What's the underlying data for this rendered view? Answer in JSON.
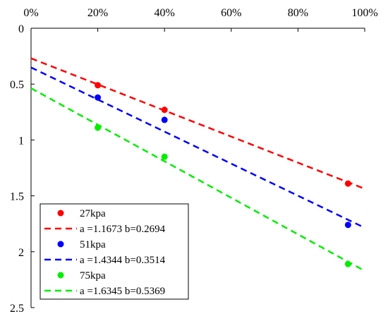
{
  "chart_data": {
    "type": "scatter",
    "title": "",
    "xlabel": "",
    "ylabel": "",
    "x_axis_position": "top",
    "y_axis_reversed": true,
    "xlim": [
      0,
      100
    ],
    "ylim": [
      0,
      2.5
    ],
    "x_ticks": [
      0,
      20,
      40,
      60,
      80,
      100
    ],
    "x_tick_labels": [
      "0%",
      "20%",
      "40%",
      "60%",
      "80%",
      "100%"
    ],
    "y_ticks": [
      0,
      0.5,
      1,
      1.5,
      2,
      2.5
    ],
    "y_tick_labels": [
      "0",
      "0.5",
      "1",
      "1.5",
      "2",
      "2.5"
    ],
    "grid": false,
    "legend_position": "bottom-left",
    "series": [
      {
        "name": "27kpa",
        "color": "#ff0000",
        "points": {
          "x": [
            20,
            40,
            95
          ],
          "y": [
            0.51,
            0.73,
            1.39
          ]
        },
        "fit": {
          "label": "a =1.1673 b=0.2694",
          "a": 1.1673,
          "b": 0.2694
        }
      },
      {
        "name": "51kpa",
        "color": "#0000ff",
        "points": {
          "x": [
            20,
            40,
            95
          ],
          "y": [
            0.62,
            0.82,
            1.76
          ]
        },
        "fit": {
          "label": "a =1.4344 b=0.3514",
          "a": 1.4344,
          "b": 0.3514
        }
      },
      {
        "name": "75kpa",
        "color": "#00ee00",
        "points": {
          "x": [
            20,
            40,
            95
          ],
          "y": [
            0.89,
            1.15,
            2.11
          ]
        },
        "fit": {
          "label": "a =1.6345 b=0.5369",
          "a": 1.6345,
          "b": 0.5369
        }
      }
    ]
  }
}
